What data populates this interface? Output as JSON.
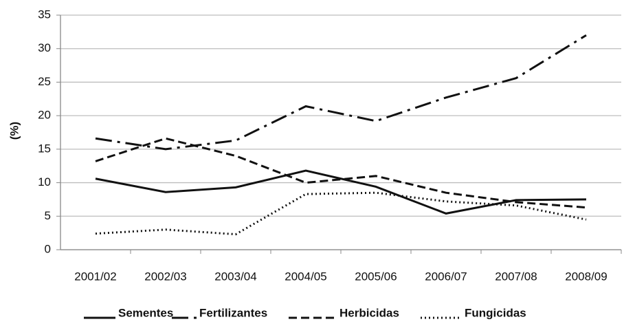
{
  "chart_data": {
    "type": "line",
    "y_label": "(%)",
    "categories": [
      "2001/02",
      "2002/03",
      "2003/04",
      "2004/05",
      "2005/06",
      "2006/07",
      "2007/08",
      "2008/09"
    ],
    "series": [
      {
        "name": "Sementes",
        "color": "#111111",
        "dash": "solid",
        "values": [
          10.6,
          8.6,
          9.3,
          11.8,
          9.4,
          5.4,
          7.4,
          7.5
        ]
      },
      {
        "name": "Fertilizantes",
        "color": "#111111",
        "dash": "dashdot",
        "values": [
          16.6,
          15.0,
          16.3,
          21.4,
          19.2,
          22.7,
          25.6,
          32.0
        ]
      },
      {
        "name": "Herbicidas",
        "color": "#111111",
        "dash": "dashed",
        "values": [
          13.2,
          16.6,
          14.0,
          10.0,
          11.0,
          8.5,
          7.1,
          6.3
        ]
      },
      {
        "name": "Fungicidas",
        "color": "#111111",
        "dash": "dotted",
        "values": [
          2.4,
          3.0,
          2.3,
          8.3,
          8.5,
          7.2,
          6.6,
          4.5
        ]
      }
    ],
    "ylim": [
      0,
      35
    ],
    "yticks": [
      0,
      5,
      10,
      15,
      20,
      25,
      30,
      35
    ],
    "grid": true,
    "legend": "bottom"
  }
}
